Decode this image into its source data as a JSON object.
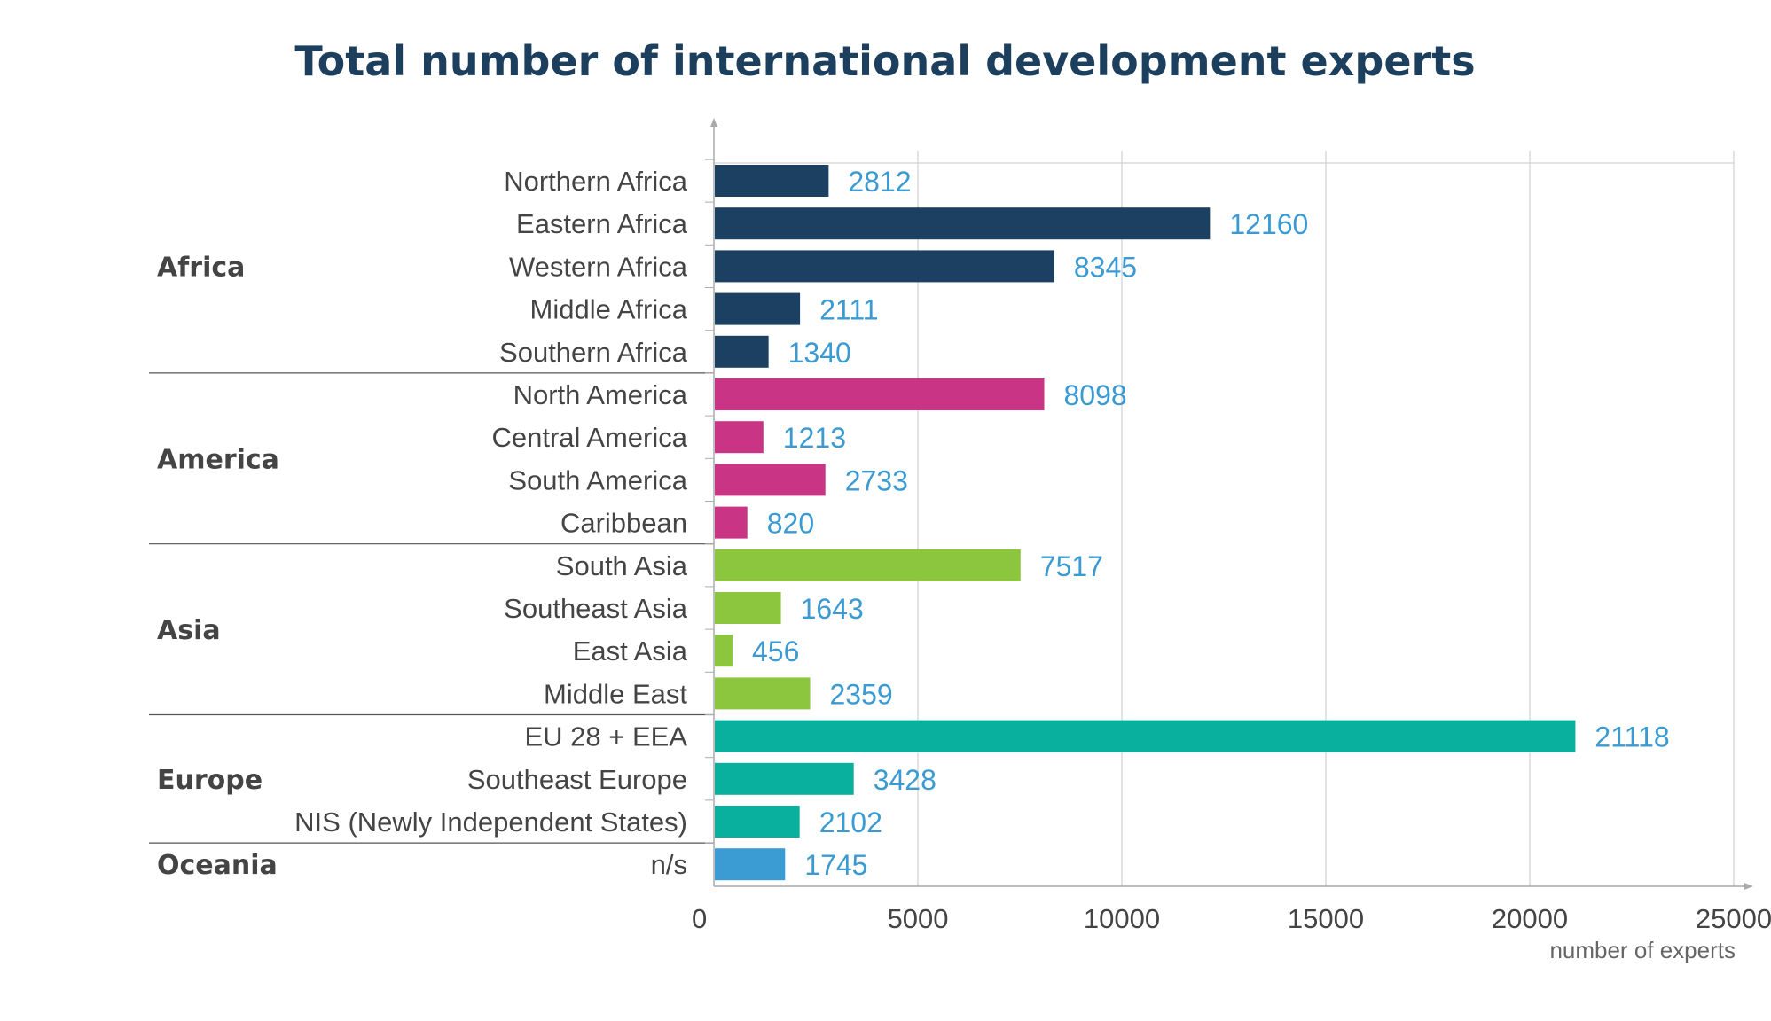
{
  "chart_data": {
    "type": "bar",
    "orientation": "horizontal",
    "title": "Total number of international development experts",
    "xlabel": "number of experts",
    "xlim": [
      0,
      25000
    ],
    "xticks": [
      0,
      5000,
      10000,
      15000,
      20000,
      25000
    ],
    "grid": true,
    "groups": [
      {
        "name": "Africa",
        "color": "#1c4062",
        "items": [
          {
            "label": "Northern Africa",
            "value": 2812
          },
          {
            "label": "Eastern Africa",
            "value": 12160
          },
          {
            "label": "Western Africa",
            "value": 8345
          },
          {
            "label": "Middle Africa",
            "value": 2111
          },
          {
            "label": "Southern Africa",
            "value": 1340
          }
        ]
      },
      {
        "name": "America",
        "color": "#c93484",
        "items": [
          {
            "label": "North America",
            "value": 8098
          },
          {
            "label": "Central America",
            "value": 1213
          },
          {
            "label": "South America",
            "value": 2733
          },
          {
            "label": "Caribbean",
            "value": 820
          }
        ]
      },
      {
        "name": "Asia",
        "color": "#8cc63f",
        "items": [
          {
            "label": "South Asia",
            "value": 7517
          },
          {
            "label": "Southeast Asia",
            "value": 1643
          },
          {
            "label": "East Asia",
            "value": 456
          },
          {
            "label": "Middle East",
            "value": 2359
          }
        ]
      },
      {
        "name": "Europe",
        "color": "#0ab09e",
        "items": [
          {
            "label": "EU 28 + EEA",
            "value": 21118
          },
          {
            "label": "Southeast Europe",
            "value": 3428
          },
          {
            "label": "NIS (Newly Independent States)",
            "value": 2102
          }
        ]
      },
      {
        "name": "Oceania",
        "color": "#3b9bd3",
        "items": [
          {
            "label": "n/s",
            "value": 1745
          }
        ]
      }
    ],
    "value_label_color": "#3a9ad1"
  }
}
